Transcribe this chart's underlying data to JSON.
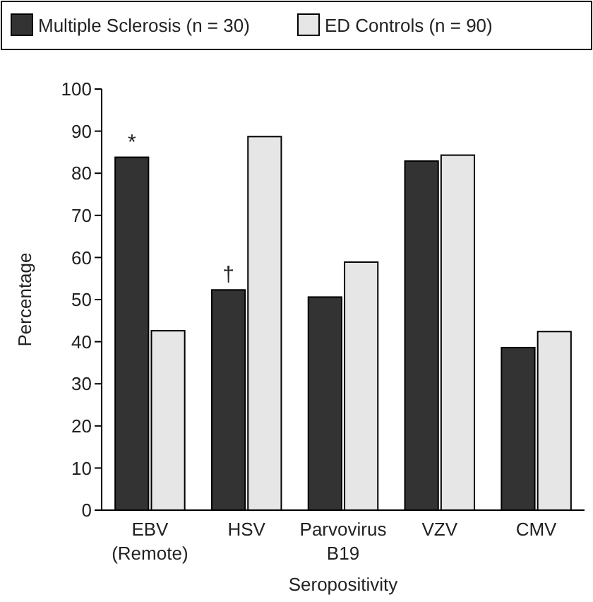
{
  "chart_data": {
    "type": "bar",
    "xlabel": "Seropositivity",
    "ylabel": "Percentage",
    "categories": [
      "EBV\n(Remote)",
      "HSV",
      "Parvovirus\nB19",
      "VZV",
      "CMV"
    ],
    "series": [
      {
        "name": "Multiple Sclerosis (n = 30)",
        "color": "#333333",
        "values": [
          83.8,
          52.3,
          50.6,
          82.9,
          38.6
        ]
      },
      {
        "name": "ED Controls (n = 90)",
        "color": "#e6e6e6",
        "values": [
          42.6,
          88.7,
          58.9,
          84.3,
          42.4
        ]
      }
    ],
    "ylim": [
      0,
      100
    ],
    "yticks": [
      0,
      10,
      20,
      30,
      40,
      50,
      60,
      70,
      80,
      90,
      100
    ],
    "grid": false,
    "legend": "top",
    "annotations": [
      {
        "text": "*",
        "x": "EBV\n(Remote)",
        "y": 83.8
      },
      {
        "text": "†",
        "x": "HSV",
        "y": 52.3
      }
    ]
  }
}
